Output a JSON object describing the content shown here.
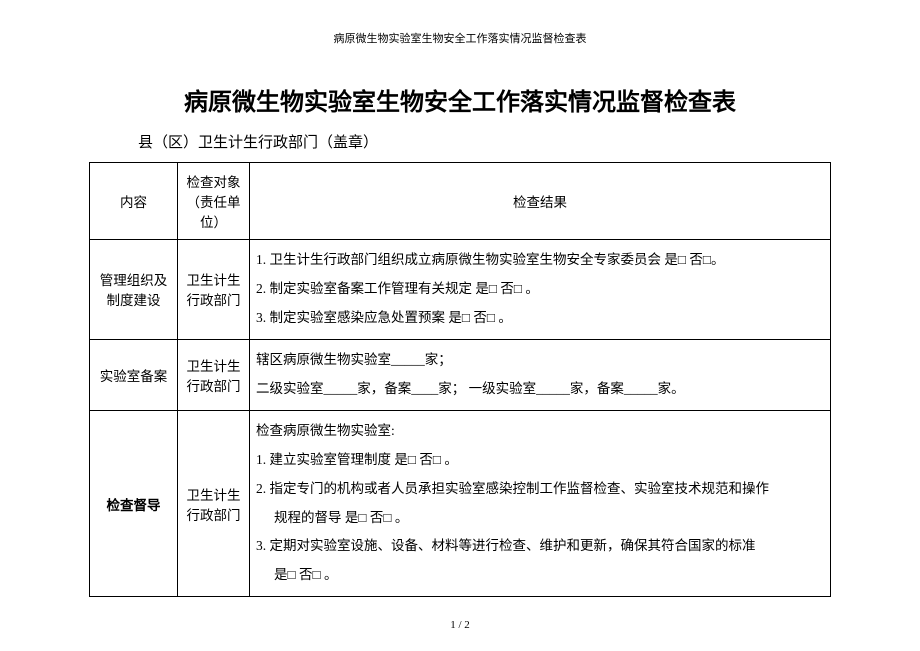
{
  "page_header": "病原微生物实验室生物安全工作落实情况监督检查表",
  "title": "病原微生物实验室生物安全工作落实情况监督检查表",
  "subtitle": "县（区）卫生计生行政部门（盖章）",
  "table": {
    "headers": {
      "content": "内容",
      "target": "检查对象（责任单位）",
      "result": "检查结果"
    },
    "rows": [
      {
        "content": "管理组织及制度建设",
        "target": "卫生计生行政部门",
        "result_lines": [
          "1. 卫生计生行政部门组织成立病原微生物实验室生物安全专家委员会 是□  否□。",
          "2. 制定实验室备案工作管理有关规定   是□  否□ 。",
          "3. 制定实验室感染应急处置预案   是□  否□ 。"
        ]
      },
      {
        "content": "实验室备案",
        "target": "卫生计生行政部门",
        "result_lines": [
          "辖区病原微生物实验室_____家；",
          "二级实验室_____家，备案____家； 一级实验室_____家，备案_____家。"
        ]
      },
      {
        "content": "检查督导",
        "content_bold": true,
        "target": "卫生计生行政部门",
        "result_lines": [
          "检查病原微生物实验室:",
          "1. 建立实验室管理制度    是□  否□ 。",
          "2. 指定专门的机构或者人员承担实验室感染控制工作监督检查、实验室技术规范和操作",
          "   规程的督导    是□  否□ 。",
          "3. 定期对实验室设施、设备、材料等进行检查、维护和更新，确保其符合国家的标准",
          "   是□  否□ 。"
        ]
      }
    ]
  },
  "footer": "1 / 2",
  "colors": {
    "text": "#000000",
    "background": "#ffffff",
    "border": "#000000"
  },
  "fonts": {
    "body": "SimSun",
    "heading": "SimHei",
    "header_size": 11,
    "title_size": 24,
    "subtitle_size": 15,
    "table_size": 13.5
  }
}
